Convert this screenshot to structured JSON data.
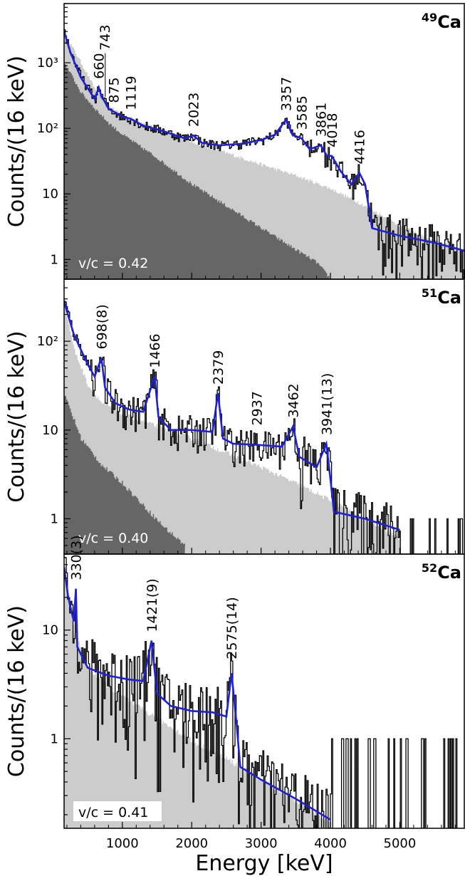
{
  "chart_data": {
    "type": "histogram-stack",
    "xlabel": "Energy [keV]",
    "xlim": [
      160,
      5940
    ],
    "xticks": [
      1000,
      2000,
      3000,
      4000,
      5000
    ],
    "xtick_labels": [
      "1000",
      "2000",
      "3000",
      "4000",
      "5000"
    ],
    "panels": [
      {
        "id": "ca49",
        "isotope_mass": "49",
        "isotope_symbol": "Ca",
        "ylabel": "Counts/(16 keV)",
        "yscale": "log",
        "ylim": [
          0.5,
          8000
        ],
        "yticks": [
          1,
          10,
          100,
          1000
        ],
        "ytick_labels": [
          "1",
          "10",
          "10²",
          "10³"
        ],
        "vc_label": "v/c = 0.42",
        "peaks": [
          {
            "label": "660",
            "energy": 660,
            "height": 420
          },
          {
            "label": "743",
            "energy": 743,
            "height": 260
          },
          {
            "label": "875",
            "energy": 875,
            "height": 180
          },
          {
            "label": "1119",
            "energy": 1119,
            "height": 140
          },
          {
            "label": "2023",
            "energy": 2023,
            "height": 78
          },
          {
            "label": "3357",
            "energy": 3357,
            "height": 135
          },
          {
            "label": "3585",
            "energy": 3585,
            "height": 70
          },
          {
            "label": "3861",
            "energy": 3861,
            "height": 55
          },
          {
            "label": "4018",
            "energy": 4018,
            "height": 38
          },
          {
            "label": "4416",
            "energy": 4416,
            "height": 21
          }
        ],
        "fit_segments": [
          [
            160,
            3000
          ],
          [
            250,
            1450
          ],
          [
            400,
            600
          ],
          [
            600,
            280
          ],
          [
            660,
            420
          ],
          [
            700,
            300
          ],
          [
            743,
            260
          ],
          [
            800,
            200
          ],
          [
            875,
            180
          ],
          [
            1000,
            150
          ],
          [
            1119,
            140
          ],
          [
            1300,
            110
          ],
          [
            1600,
            90
          ],
          [
            1900,
            70
          ],
          [
            2023,
            78
          ],
          [
            2150,
            60
          ],
          [
            2400,
            55
          ],
          [
            2700,
            58
          ],
          [
            3000,
            66
          ],
          [
            3200,
            80
          ],
          [
            3357,
            135
          ],
          [
            3450,
            80
          ],
          [
            3585,
            70
          ],
          [
            3700,
            48
          ],
          [
            3861,
            55
          ],
          [
            3950,
            38
          ],
          [
            4018,
            38
          ],
          [
            4150,
            22
          ],
          [
            4300,
            14
          ],
          [
            4416,
            21
          ],
          [
            4500,
            14
          ],
          [
            4600,
            3
          ],
          [
            5000,
            2.3
          ],
          [
            5500,
            1.8
          ],
          [
            5940,
            1.35
          ]
        ],
        "light_bg": [
          [
            160,
            2800
          ],
          [
            400,
            1000
          ],
          [
            600,
            400
          ],
          [
            800,
            220
          ],
          [
            1000,
            160
          ],
          [
            1500,
            100
          ],
          [
            2000,
            62
          ],
          [
            2500,
            42
          ],
          [
            3000,
            28
          ],
          [
            3500,
            19
          ],
          [
            4000,
            12
          ],
          [
            4500,
            6.5
          ],
          [
            5000,
            3.2
          ],
          [
            5500,
            1.9
          ],
          [
            5940,
            1.4
          ]
        ],
        "dark_bg": [
          [
            160,
            1000
          ],
          [
            400,
            350
          ],
          [
            600,
            200
          ],
          [
            800,
            120
          ],
          [
            1000,
            80
          ],
          [
            1500,
            35
          ],
          [
            2000,
            14
          ],
          [
            2500,
            6.5
          ],
          [
            3000,
            3
          ],
          [
            3500,
            1.4
          ],
          [
            3800,
            0.9
          ],
          [
            4000,
            0.5
          ]
        ]
      },
      {
        "id": "ca51",
        "isotope_mass": "51",
        "isotope_symbol": "Ca",
        "ylabel": "Counts/(16 keV)",
        "yscale": "log",
        "ylim": [
          0.4,
          500
        ],
        "yticks": [
          1,
          10,
          100
        ],
        "ytick_labels": [
          "1",
          "10",
          "10²"
        ],
        "vc_label": "v/c = 0.40",
        "peaks": [
          {
            "label": "698(8)",
            "energy": 698,
            "height": 65
          },
          {
            "label": "1466",
            "energy": 1466,
            "height": 40
          },
          {
            "label": "2379",
            "energy": 2379,
            "height": 26
          },
          {
            "label": "2937",
            "energy": 2937,
            "height": 9
          },
          {
            "label": "3462",
            "energy": 3462,
            "height": 11
          },
          {
            "label": "3941(13)",
            "energy": 3941,
            "height": 7
          }
        ],
        "fit_segments": [
          [
            160,
            280
          ],
          [
            300,
            120
          ],
          [
            500,
            55
          ],
          [
            600,
            40
          ],
          [
            698,
            65
          ],
          [
            750,
            30
          ],
          [
            900,
            20
          ],
          [
            1100,
            17
          ],
          [
            1300,
            16
          ],
          [
            1466,
            40
          ],
          [
            1520,
            14
          ],
          [
            1700,
            10
          ],
          [
            2000,
            10
          ],
          [
            2300,
            9.5
          ],
          [
            2379,
            26
          ],
          [
            2450,
            8
          ],
          [
            2600,
            7
          ],
          [
            2937,
            6.8
          ],
          [
            3300,
            6.5
          ],
          [
            3462,
            11
          ],
          [
            3550,
            5
          ],
          [
            3800,
            3.8
          ],
          [
            3941,
            7
          ],
          [
            4000,
            2.8
          ],
          [
            4050,
            1.2
          ],
          [
            4500,
            1.0
          ],
          [
            5000,
            0.75
          ]
        ],
        "light_bg": [
          [
            160,
            260
          ],
          [
            300,
            80
          ],
          [
            500,
            32
          ],
          [
            700,
            20
          ],
          [
            1000,
            15
          ],
          [
            1500,
            11
          ],
          [
            2000,
            8
          ],
          [
            2500,
            5.5
          ],
          [
            3000,
            3.8
          ],
          [
            3500,
            2.5
          ],
          [
            4000,
            1.6
          ],
          [
            4500,
            1.0
          ],
          [
            5000,
            0.6
          ]
        ],
        "dark_bg": [
          [
            160,
            25
          ],
          [
            400,
            8
          ],
          [
            700,
            4
          ],
          [
            1000,
            2.5
          ],
          [
            1300,
            1.4
          ],
          [
            1600,
            0.8
          ],
          [
            1900,
            0.5
          ]
        ]
      },
      {
        "id": "ca52",
        "isotope_mass": "52",
        "isotope_symbol": "Ca",
        "ylabel": "Counts/(16 keV)",
        "yscale": "log",
        "ylim": [
          0.15,
          50
        ],
        "yticks": [
          1,
          10
        ],
        "ytick_labels": [
          "1",
          "10"
        ],
        "vc_label": "v/c = 0.41",
        "peaks": [
          {
            "label": "330(3)",
            "energy": 330,
            "height": 24
          },
          {
            "label": "1421(9)",
            "energy": 1421,
            "height": 8
          },
          {
            "label": "2575(14)",
            "energy": 2575,
            "height": 4.5
          }
        ],
        "fit_segments": [
          [
            160,
            38
          ],
          [
            220,
            20
          ],
          [
            300,
            12
          ],
          [
            330,
            24
          ],
          [
            350,
            7
          ],
          [
            500,
            4.5
          ],
          [
            800,
            3.8
          ],
          [
            1100,
            3.5
          ],
          [
            1300,
            3.4
          ],
          [
            1421,
            8
          ],
          [
            1500,
            2.6
          ],
          [
            1700,
            2.0
          ],
          [
            2000,
            1.8
          ],
          [
            2300,
            1.75
          ],
          [
            2500,
            1.6
          ],
          [
            2575,
            4.0
          ],
          [
            2650,
            1.3
          ],
          [
            2700,
            0.55
          ],
          [
            3000,
            0.42
          ],
          [
            3500,
            0.28
          ],
          [
            4000,
            0.18
          ]
        ],
        "light_bg": [
          [
            160,
            35
          ],
          [
            300,
            10
          ],
          [
            500,
            4.5
          ],
          [
            800,
            3.0
          ],
          [
            1200,
            2.0
          ],
          [
            1600,
            1.4
          ],
          [
            2000,
            0.95
          ],
          [
            2500,
            0.65
          ],
          [
            3000,
            0.42
          ],
          [
            3500,
            0.27
          ],
          [
            4000,
            0.17
          ]
        ],
        "dark_bg": []
      }
    ]
  }
}
